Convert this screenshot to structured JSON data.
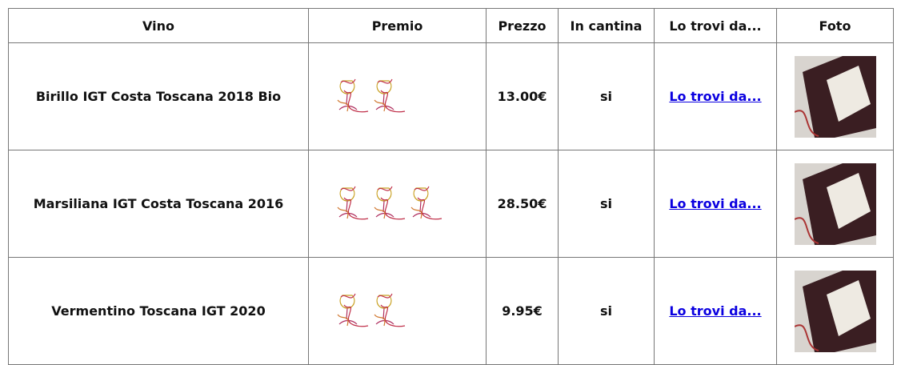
{
  "table": {
    "headers": [
      "Vino",
      "Premio",
      "Prezzo",
      "In cantina",
      "Lo trovi da...",
      "Foto"
    ],
    "rows": [
      {
        "wine": "Birillo IGT Costa Toscana 2018 Bio",
        "award_glasses": 2,
        "price": "13.00€",
        "in_cellar": "si",
        "link": "Lo trovi da..."
      },
      {
        "wine": "Marsiliana IGT Costa Toscana 2016",
        "award_glasses": 3,
        "price": "28.50€",
        "in_cellar": "si",
        "link": "Lo trovi da..."
      },
      {
        "wine": "Vermentino Toscana IGT 2020",
        "award_glasses": 2,
        "price": "9.95€",
        "in_cellar": "si",
        "link": "Lo trovi da..."
      }
    ]
  }
}
